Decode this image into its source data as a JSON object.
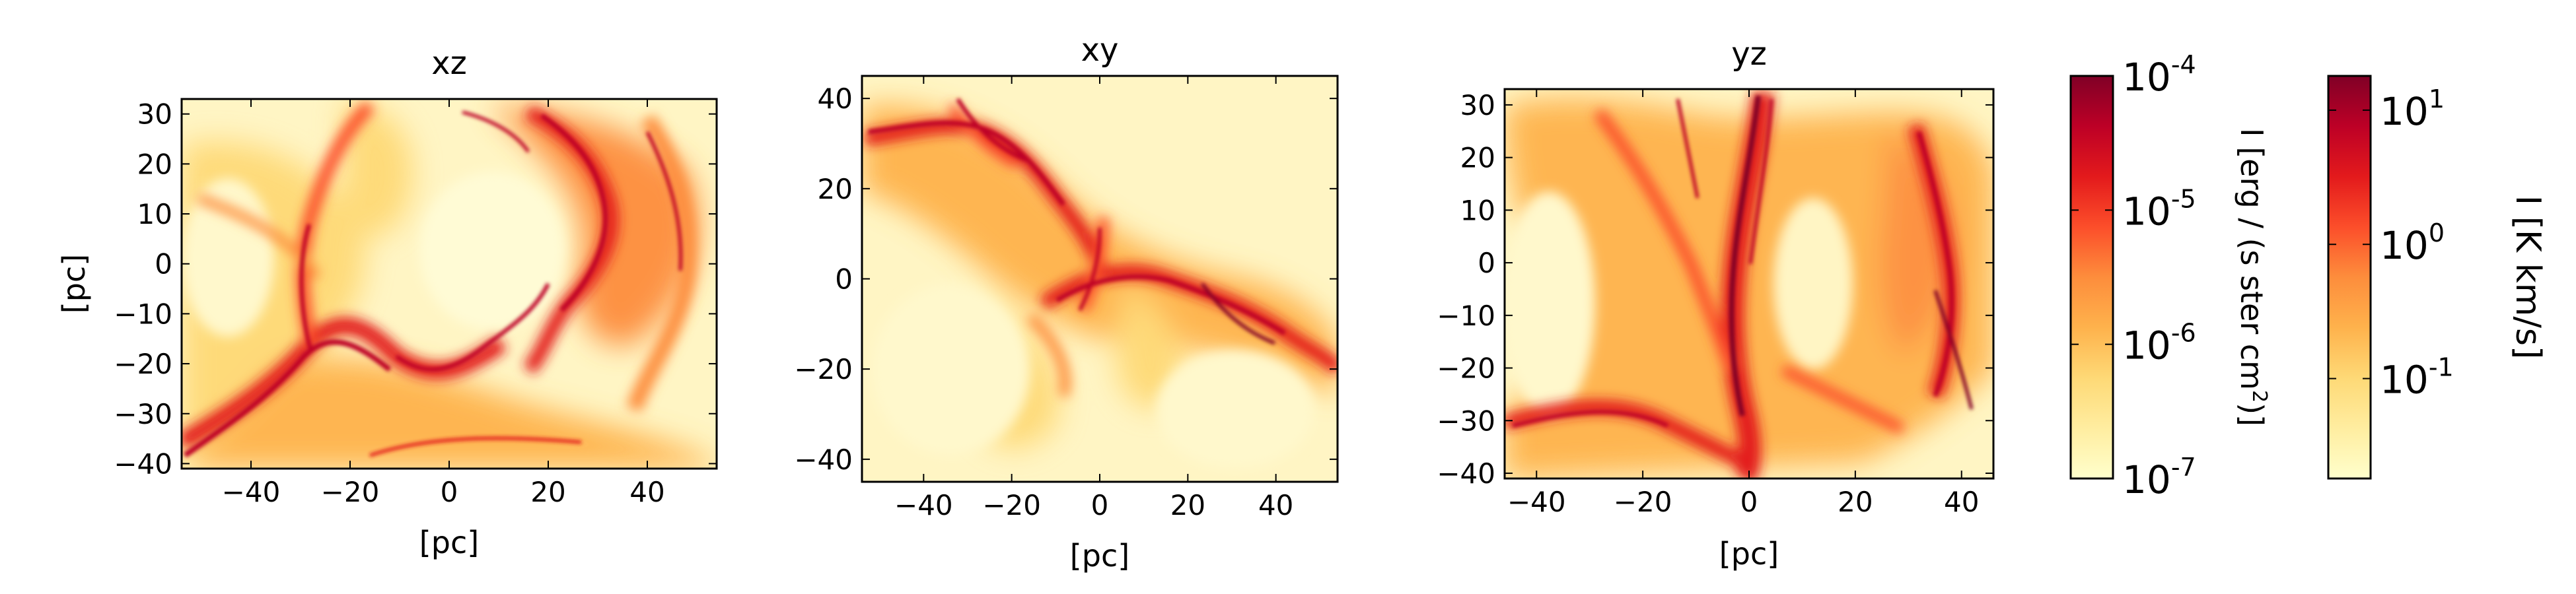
{
  "chart_data": [
    {
      "type": "heatmap",
      "title": "xz",
      "xlabel": "[pc]",
      "ylabel": "[pc]",
      "xlim": [
        -54,
        54
      ],
      "ylim": [
        -41,
        33
      ],
      "xticks": [
        -40,
        -20,
        0,
        20,
        40
      ],
      "yticks": [
        -40,
        -30,
        -20,
        -10,
        0,
        10,
        20,
        30
      ],
      "xtick_labels": [
        "−40",
        "−20",
        "0",
        "20",
        "40"
      ],
      "ytick_labels": [
        "−40",
        "−30",
        "−20",
        "−10",
        "0",
        "10",
        "20",
        "30"
      ],
      "description": "Integrated emission map (xz projection), filamentary red structure around a central cavity"
    },
    {
      "type": "heatmap",
      "title": "xy",
      "xlabel": "[pc]",
      "ylabel": "",
      "xlim": [
        -54,
        54
      ],
      "ylim": [
        -45,
        45
      ],
      "xticks": [
        -40,
        -20,
        0,
        20,
        40
      ],
      "yticks": [
        -40,
        -20,
        0,
        20,
        40
      ],
      "xtick_labels": [
        "−40",
        "−20",
        "0",
        "20",
        "40"
      ],
      "ytick_labels": [
        "−40",
        "−20",
        "0",
        "20",
        "40"
      ],
      "description": "Integrated emission map (xy projection)"
    },
    {
      "type": "heatmap",
      "title": "yz",
      "xlabel": "[pc]",
      "ylabel": "",
      "xlim": [
        -46,
        46
      ],
      "ylim": [
        -41,
        33
      ],
      "xticks": [
        -40,
        -20,
        0,
        20,
        40
      ],
      "yticks": [
        -40,
        -30,
        -20,
        -10,
        0,
        10,
        20,
        30
      ],
      "xtick_labels": [
        "−40",
        "−20",
        "0",
        "20",
        "40"
      ],
      "ytick_labels": [
        "−40",
        "−30",
        "−20",
        "−10",
        "0",
        "10",
        "20",
        "30"
      ],
      "description": "Integrated emission map (yz projection)"
    }
  ],
  "colorbars": [
    {
      "label": "I [erg / (s ster cm",
      "label_sup": "2",
      "label_end": ")]",
      "scale": "log",
      "range": [
        1e-07,
        0.0001
      ],
      "tick_values": [
        1e-07,
        1e-06,
        1e-05,
        0.0001
      ],
      "tick_bases": [
        "10",
        "10",
        "10",
        "10"
      ],
      "tick_exps": [
        "-7",
        "-6",
        "-5",
        "-4"
      ]
    },
    {
      "label": "I [K km/s]",
      "scale": "log",
      "range": [
        0.018,
        18
      ],
      "tick_values": [
        0.1,
        1,
        10
      ],
      "tick_bases": [
        "10",
        "10",
        "10"
      ],
      "tick_exps": [
        "-1",
        "0",
        "1"
      ]
    }
  ],
  "colormap": {
    "name": "YlOrRd",
    "stops": [
      "#ffffcc",
      "#ffeda0",
      "#fed976",
      "#feb24c",
      "#fd8d3c",
      "#fc4e2a",
      "#e31a1c",
      "#bd0026",
      "#800026"
    ]
  }
}
